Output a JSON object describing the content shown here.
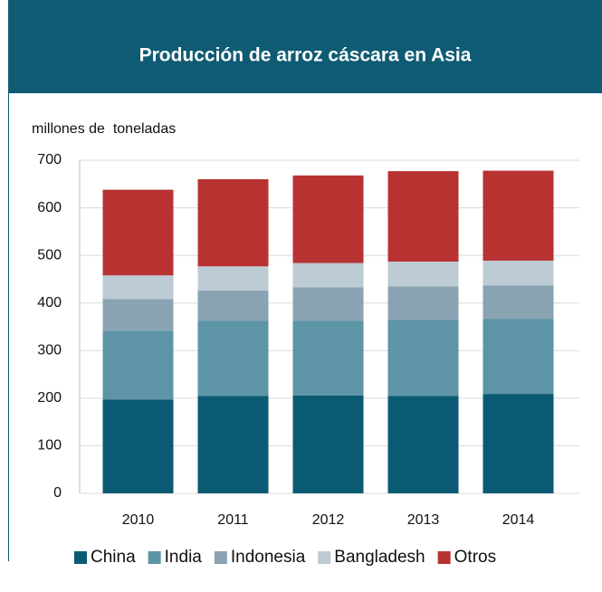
{
  "chart_data": {
    "type": "bar",
    "stacked": true,
    "title": "Producción de arroz cáscara en Asia",
    "y_label": "millones de  toneladas",
    "categories": [
      "2010",
      "2011",
      "2012",
      "2013",
      "2014"
    ],
    "series": [
      {
        "name": "China",
        "color": "#0b5a73",
        "values": [
          197,
          205,
          206,
          205,
          209
        ]
      },
      {
        "name": "India",
        "color": "#5d95a6",
        "values": [
          145,
          158,
          157,
          160,
          158
        ]
      },
      {
        "name": "Indonesia",
        "color": "#8aa3b3",
        "values": [
          66,
          63,
          70,
          70,
          70
        ]
      },
      {
        "name": "Bangladesh",
        "color": "#bccbd4",
        "values": [
          50,
          51,
          51,
          52,
          52
        ]
      },
      {
        "name": "Otros",
        "color": "#b83232",
        "values": [
          180,
          183,
          184,
          190,
          189
        ]
      }
    ],
    "ylim": [
      0,
      700
    ],
    "yticks": [
      0,
      100,
      200,
      300,
      400,
      500,
      600,
      700
    ],
    "grid": true,
    "legend": "bottom"
  }
}
